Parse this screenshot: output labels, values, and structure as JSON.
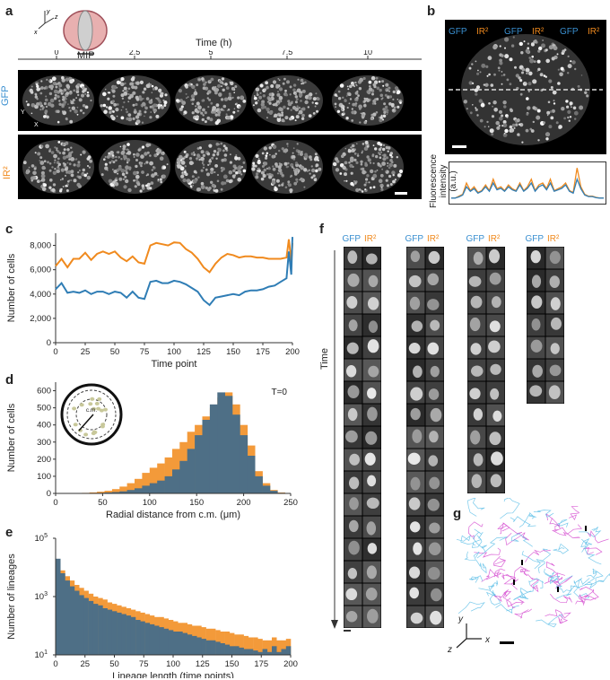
{
  "panels": {
    "a": "a",
    "b": "b",
    "c": "c",
    "d": "d",
    "e": "e",
    "f": "f",
    "g": "g"
  },
  "panel_a": {
    "time_title": "Time (h)",
    "time_ticks": [
      "0",
      "2.5",
      "5",
      "7.5",
      "10"
    ],
    "mip_label": "MIP",
    "axis_y": "y",
    "axis_z": "z",
    "axis_x": "x",
    "row_labels": [
      "GFP",
      "IR²"
    ],
    "img_axis_y": "Y",
    "img_axis_x": "X"
  },
  "panel_b": {
    "labels": [
      "GFP",
      "IR²",
      "GFP",
      "IR²",
      "GFP",
      "IR²"
    ],
    "ylabel_line1": "Fluorescence",
    "ylabel_line2": "intensity (a.u.)"
  },
  "panel_f": {
    "col_gfp": "GFP",
    "col_ir": "IR²",
    "time_label": "Time"
  },
  "panel_g": {
    "axis_y": "y",
    "axis_x": "x",
    "axis_z": "z"
  },
  "colors": {
    "gfp": "#2f7db5",
    "ir": "#f39a3a",
    "overlap": "#4e6f86",
    "track_cyan": "#5fc0e8",
    "track_magenta": "#d54bd0"
  },
  "chart_data": [
    {
      "id": "c",
      "type": "line",
      "xlabel": "Time point",
      "ylabel": "Number of cells",
      "xlim": [
        0,
        200
      ],
      "ylim": [
        0,
        9000
      ],
      "xticks": [
        0,
        25,
        50,
        75,
        100,
        125,
        150,
        175,
        200
      ],
      "yticks": [
        0,
        2000,
        4000,
        6000,
        8000
      ],
      "ytick_labels": [
        "0",
        "2,000",
        "4,000",
        "6,000",
        "8,000"
      ],
      "x": [
        0,
        5,
        10,
        15,
        20,
        25,
        30,
        35,
        40,
        45,
        50,
        55,
        60,
        65,
        70,
        75,
        80,
        85,
        90,
        95,
        100,
        105,
        110,
        115,
        120,
        125,
        130,
        135,
        140,
        145,
        150,
        155,
        160,
        165,
        170,
        175,
        180,
        185,
        190,
        195,
        197,
        199,
        200
      ],
      "series": [
        {
          "color": "#f08a1e",
          "values": [
            6300,
            6900,
            6200,
            6900,
            6900,
            7400,
            6800,
            7300,
            7500,
            7300,
            7500,
            7000,
            6700,
            7100,
            6600,
            6500,
            8000,
            8200,
            8100,
            8000,
            8250,
            8200,
            7700,
            7400,
            6900,
            6200,
            5800,
            6500,
            7000,
            7300,
            7200,
            7000,
            7100,
            7100,
            7000,
            7000,
            6900,
            6900,
            6900,
            7000,
            8500,
            6700,
            8200
          ]
        },
        {
          "color": "#2f7db5",
          "values": [
            4400,
            4900,
            4100,
            4200,
            4100,
            4300,
            4000,
            4200,
            4200,
            4000,
            4200,
            4100,
            3700,
            4200,
            3700,
            3600,
            5000,
            5100,
            4900,
            4900,
            5100,
            5000,
            4800,
            4500,
            4200,
            3500,
            3100,
            3700,
            3800,
            3900,
            4000,
            3900,
            4200,
            4300,
            4300,
            4400,
            4600,
            4700,
            5000,
            5300,
            7500,
            5600,
            8700
          ]
        }
      ]
    },
    {
      "id": "d",
      "type": "bar",
      "xlabel": "Radial distance from c.m. (μm)",
      "ylabel": "Number of cells",
      "annotation": "T=0",
      "inset_label": "c.m.",
      "xlim": [
        0,
        250
      ],
      "ylim": [
        0,
        650
      ],
      "xticks": [
        0,
        50,
        100,
        150,
        200,
        250
      ],
      "yticks": [
        0,
        100,
        200,
        300,
        400,
        500,
        600
      ],
      "bin_start": 20,
      "bin_width": 8,
      "series": [
        {
          "color": "#f39a3a",
          "values": [
            2,
            3,
            6,
            10,
            15,
            25,
            40,
            60,
            85,
            120,
            150,
            175,
            210,
            260,
            300,
            360,
            400,
            450,
            500,
            560,
            590,
            520,
            400,
            280,
            130,
            60,
            20,
            5
          ]
        },
        {
          "color": "#4e6f86",
          "values": [
            1,
            1,
            2,
            3,
            5,
            8,
            12,
            20,
            30,
            45,
            60,
            75,
            100,
            140,
            190,
            260,
            340,
            430,
            520,
            590,
            570,
            460,
            340,
            220,
            100,
            45,
            15,
            3
          ]
        }
      ]
    },
    {
      "id": "e",
      "type": "bar",
      "xlabel": "Lineage length (time points)",
      "ylabel": "Number of lineages",
      "xlim": [
        0,
        200
      ],
      "ylim_log10": [
        1,
        5
      ],
      "xticks": [
        0,
        25,
        50,
        75,
        100,
        125,
        150,
        175,
        200
      ],
      "yticks_log10": [
        1,
        3,
        5
      ],
      "ytick_labels": [
        "10",
        "10",
        "10"
      ],
      "ytick_exps": [
        "1",
        "3",
        "5"
      ],
      "bin_width": 4,
      "series": [
        {
          "color": "#f39a3a",
          "log10_values": [
            4.1,
            3.9,
            3.7,
            3.55,
            3.4,
            3.3,
            3.2,
            3.1,
            3.0,
            2.95,
            2.9,
            2.8,
            2.75,
            2.7,
            2.65,
            2.6,
            2.55,
            2.5,
            2.45,
            2.4,
            2.35,
            2.3,
            2.3,
            2.25,
            2.2,
            2.15,
            2.1,
            2.1,
            2.05,
            2.0,
            2.0,
            1.95,
            1.9,
            1.9,
            1.85,
            1.8,
            1.8,
            1.75,
            1.7,
            1.7,
            1.65,
            1.6,
            1.6,
            1.55,
            1.5,
            1.5,
            1.6,
            1.5,
            1.5,
            1.55
          ]
        },
        {
          "color": "#4e6f86",
          "log10_values": [
            4.3,
            3.8,
            3.55,
            3.35,
            3.2,
            3.05,
            2.95,
            2.85,
            2.75,
            2.7,
            2.6,
            2.55,
            2.5,
            2.45,
            2.4,
            2.35,
            2.3,
            2.2,
            2.15,
            2.1,
            2.05,
            2.0,
            1.95,
            1.9,
            1.85,
            1.8,
            1.8,
            1.75,
            1.7,
            1.65,
            1.6,
            1.55,
            1.5,
            1.5,
            1.45,
            1.4,
            1.35,
            1.3,
            1.3,
            1.25,
            1.2,
            1.2,
            1.15,
            1.1,
            1.2,
            1.1,
            1.3,
            1.1,
            1.2,
            1.3
          ]
        }
      ]
    },
    {
      "id": "b_profile",
      "type": "line",
      "x": [
        0,
        2,
        4,
        6,
        8,
        10,
        12,
        14,
        16,
        18,
        20,
        22,
        24,
        26,
        28,
        30,
        32,
        34,
        36,
        38,
        40,
        42,
        44,
        46,
        48,
        50,
        52,
        54,
        56,
        58,
        60,
        62,
        64,
        66,
        68,
        70,
        72,
        74,
        76,
        78,
        80
      ],
      "ylim": [
        0,
        10
      ],
      "series": [
        {
          "color": "#f08a1e",
          "values": [
            1,
            1,
            1.5,
            2,
            5,
            3,
            4,
            2.5,
            3,
            4.5,
            3,
            6,
            3.5,
            4,
            3,
            4.5,
            3.5,
            3,
            5,
            3,
            4,
            6,
            3,
            4.5,
            5,
            3.5,
            6,
            3,
            3.5,
            4,
            5,
            3,
            2.5,
            9,
            4,
            2,
            1.5,
            1.5,
            1.2,
            1,
            1
          ]
        },
        {
          "color": "#2f7db5",
          "values": [
            1,
            1,
            1.3,
            1.8,
            4,
            2.8,
            3.5,
            2.3,
            2.8,
            4,
            2.8,
            5,
            3.2,
            3.6,
            2.8,
            4,
            3.2,
            2.8,
            4.5,
            2.8,
            3.6,
            5,
            2.8,
            4,
            4.5,
            3.2,
            5,
            2.8,
            3.2,
            3.6,
            4.5,
            2.8,
            2.3,
            6,
            3.5,
            1.8,
            1.4,
            1.4,
            1.1,
            1,
            1
          ]
        }
      ]
    }
  ]
}
